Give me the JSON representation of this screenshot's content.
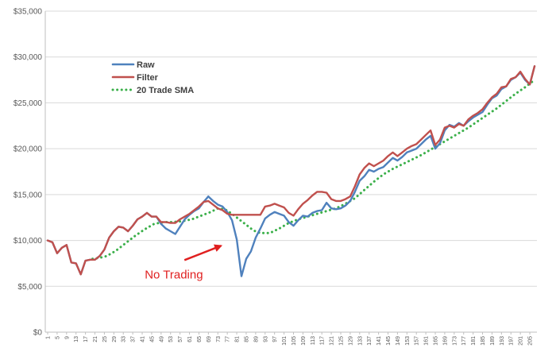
{
  "chart_data": {
    "type": "line",
    "title": "",
    "xlabel": "",
    "ylabel": "",
    "ylim": [
      0,
      35000
    ],
    "y_ticks": [
      0,
      5000,
      10000,
      15000,
      20000,
      25000,
      30000,
      35000
    ],
    "y_tick_labels": [
      "$0",
      "$5,000",
      "$10,000",
      "$15,000",
      "$20,000",
      "$25,000",
      "$30,000",
      "$35,000"
    ],
    "x_range": [
      1,
      207
    ],
    "x_tick_values": [
      1,
      5,
      9,
      13,
      17,
      21,
      25,
      29,
      33,
      37,
      41,
      45,
      49,
      53,
      57,
      61,
      65,
      69,
      73,
      77,
      81,
      85,
      89,
      93,
      97,
      101,
      105,
      109,
      113,
      117,
      121,
      125,
      129,
      133,
      137,
      141,
      145,
      149,
      153,
      157,
      161,
      165,
      169,
      173,
      177,
      181,
      185,
      189,
      193,
      197,
      201,
      205
    ],
    "x_tick_labels": [
      "1",
      "5",
      "9",
      "13",
      "17",
      "21",
      "25",
      "29",
      "33",
      "37",
      "41",
      "45",
      "49",
      "53",
      "57",
      "61",
      "65",
      "69",
      "73",
      "77",
      "81",
      "85",
      "89",
      "93",
      "97",
      "101",
      "105",
      "109",
      "113",
      "117",
      "121",
      "125",
      "129",
      "133",
      "137",
      "141",
      "145",
      "149",
      "153",
      "157",
      "161",
      "165",
      "169",
      "173",
      "177",
      "181",
      "185",
      "189",
      "193",
      "197",
      "201",
      "205"
    ],
    "grid": "horizontal",
    "legend_position": "top-left",
    "series": [
      {
        "name": "Raw",
        "color": "#4f81bd",
        "style": "solid",
        "points": [
          [
            1,
            10000
          ],
          [
            3,
            9800
          ],
          [
            5,
            8600
          ],
          [
            7,
            9200
          ],
          [
            9,
            9500
          ],
          [
            11,
            7600
          ],
          [
            13,
            7500
          ],
          [
            15,
            6300
          ],
          [
            17,
            7800
          ],
          [
            19,
            7900
          ],
          [
            21,
            7900
          ],
          [
            23,
            8300
          ],
          [
            25,
            9000
          ],
          [
            27,
            10300
          ],
          [
            29,
            11000
          ],
          [
            31,
            11500
          ],
          [
            33,
            11400
          ],
          [
            35,
            11000
          ],
          [
            37,
            11600
          ],
          [
            39,
            12300
          ],
          [
            41,
            12600
          ],
          [
            43,
            13000
          ],
          [
            45,
            12600
          ],
          [
            47,
            12600
          ],
          [
            49,
            11800
          ],
          [
            51,
            11300
          ],
          [
            53,
            11000
          ],
          [
            55,
            10700
          ],
          [
            57,
            11500
          ],
          [
            59,
            12300
          ],
          [
            61,
            12800
          ],
          [
            63,
            13200
          ],
          [
            65,
            13500
          ],
          [
            67,
            14200
          ],
          [
            69,
            14800
          ],
          [
            71,
            14300
          ],
          [
            73,
            13900
          ],
          [
            75,
            13700
          ],
          [
            77,
            13100
          ],
          [
            79,
            12200
          ],
          [
            81,
            10100
          ],
          [
            83,
            6100
          ],
          [
            85,
            8000
          ],
          [
            87,
            8800
          ],
          [
            89,
            10300
          ],
          [
            91,
            11300
          ],
          [
            93,
            12400
          ],
          [
            95,
            12800
          ],
          [
            97,
            13100
          ],
          [
            99,
            12900
          ],
          [
            101,
            12700
          ],
          [
            103,
            12000
          ],
          [
            105,
            11600
          ],
          [
            107,
            12200
          ],
          [
            109,
            12700
          ],
          [
            111,
            12600
          ],
          [
            113,
            13000
          ],
          [
            115,
            13200
          ],
          [
            117,
            13300
          ],
          [
            119,
            14100
          ],
          [
            121,
            13500
          ],
          [
            123,
            13400
          ],
          [
            125,
            13500
          ],
          [
            127,
            13800
          ],
          [
            129,
            14300
          ],
          [
            131,
            15300
          ],
          [
            133,
            16500
          ],
          [
            135,
            17000
          ],
          [
            137,
            17700
          ],
          [
            139,
            17500
          ],
          [
            141,
            17800
          ],
          [
            143,
            18000
          ],
          [
            145,
            18500
          ],
          [
            147,
            19000
          ],
          [
            149,
            18700
          ],
          [
            151,
            19100
          ],
          [
            153,
            19600
          ],
          [
            155,
            19800
          ],
          [
            157,
            20000
          ],
          [
            159,
            20500
          ],
          [
            161,
            21000
          ],
          [
            163,
            21400
          ],
          [
            165,
            20000
          ],
          [
            167,
            20600
          ],
          [
            169,
            22000
          ],
          [
            171,
            22600
          ],
          [
            173,
            22400
          ],
          [
            175,
            22800
          ],
          [
            177,
            22500
          ],
          [
            179,
            23000
          ],
          [
            181,
            23400
          ],
          [
            183,
            23700
          ],
          [
            185,
            24000
          ],
          [
            187,
            24800
          ],
          [
            189,
            25500
          ],
          [
            191,
            25800
          ],
          [
            193,
            26500
          ],
          [
            195,
            26800
          ],
          [
            197,
            27500
          ],
          [
            199,
            27800
          ],
          [
            201,
            28300
          ],
          [
            203,
            27500
          ],
          [
            205,
            27000
          ],
          [
            207,
            29000
          ]
        ]
      },
      {
        "name": "Filter",
        "color": "#c0504d",
        "style": "solid",
        "points": [
          [
            1,
            10000
          ],
          [
            3,
            9800
          ],
          [
            5,
            8600
          ],
          [
            7,
            9200
          ],
          [
            9,
            9500
          ],
          [
            11,
            7600
          ],
          [
            13,
            7500
          ],
          [
            15,
            6300
          ],
          [
            17,
            7800
          ],
          [
            19,
            7900
          ],
          [
            21,
            7900
          ],
          [
            23,
            8300
          ],
          [
            25,
            9000
          ],
          [
            27,
            10300
          ],
          [
            29,
            11000
          ],
          [
            31,
            11500
          ],
          [
            33,
            11400
          ],
          [
            35,
            11000
          ],
          [
            37,
            11600
          ],
          [
            39,
            12300
          ],
          [
            41,
            12600
          ],
          [
            43,
            13000
          ],
          [
            45,
            12600
          ],
          [
            47,
            12600
          ],
          [
            49,
            12000
          ],
          [
            51,
            12000
          ],
          [
            53,
            11900
          ],
          [
            55,
            11900
          ],
          [
            57,
            12300
          ],
          [
            59,
            12600
          ],
          [
            61,
            12900
          ],
          [
            63,
            13300
          ],
          [
            65,
            13700
          ],
          [
            67,
            14200
          ],
          [
            69,
            14300
          ],
          [
            71,
            13900
          ],
          [
            73,
            13500
          ],
          [
            75,
            13300
          ],
          [
            77,
            12900
          ],
          [
            79,
            12800
          ],
          [
            81,
            12800
          ],
          [
            83,
            12800
          ],
          [
            85,
            12800
          ],
          [
            87,
            12800
          ],
          [
            89,
            12800
          ],
          [
            91,
            12800
          ],
          [
            93,
            13700
          ],
          [
            95,
            13800
          ],
          [
            97,
            14000
          ],
          [
            99,
            13800
          ],
          [
            101,
            13600
          ],
          [
            103,
            13000
          ],
          [
            105,
            12700
          ],
          [
            107,
            13400
          ],
          [
            109,
            14000
          ],
          [
            111,
            14400
          ],
          [
            113,
            14900
          ],
          [
            115,
            15300
          ],
          [
            117,
            15300
          ],
          [
            119,
            15200
          ],
          [
            121,
            14500
          ],
          [
            123,
            14300
          ],
          [
            125,
            14300
          ],
          [
            127,
            14500
          ],
          [
            129,
            14800
          ],
          [
            131,
            15900
          ],
          [
            133,
            17200
          ],
          [
            135,
            17900
          ],
          [
            137,
            18400
          ],
          [
            139,
            18100
          ],
          [
            141,
            18400
          ],
          [
            143,
            18700
          ],
          [
            145,
            19200
          ],
          [
            147,
            19600
          ],
          [
            149,
            19200
          ],
          [
            151,
            19600
          ],
          [
            153,
            20000
          ],
          [
            155,
            20300
          ],
          [
            157,
            20500
          ],
          [
            159,
            21000
          ],
          [
            161,
            21500
          ],
          [
            163,
            22000
          ],
          [
            165,
            20400
          ],
          [
            167,
            21000
          ],
          [
            169,
            22300
          ],
          [
            171,
            22500
          ],
          [
            173,
            22300
          ],
          [
            175,
            22700
          ],
          [
            177,
            22500
          ],
          [
            179,
            23200
          ],
          [
            181,
            23600
          ],
          [
            183,
            23900
          ],
          [
            185,
            24300
          ],
          [
            187,
            25000
          ],
          [
            189,
            25600
          ],
          [
            191,
            26000
          ],
          [
            193,
            26700
          ],
          [
            195,
            26800
          ],
          [
            197,
            27600
          ],
          [
            199,
            27800
          ],
          [
            201,
            28400
          ],
          [
            203,
            27600
          ],
          [
            205,
            27000
          ],
          [
            207,
            29000
          ]
        ]
      },
      {
        "name": "20 Trade SMA",
        "color": "#3bb04a",
        "style": "dotted",
        "points": [
          [
            20,
            8000
          ],
          [
            23,
            8100
          ],
          [
            26,
            8300
          ],
          [
            30,
            8900
          ],
          [
            34,
            9700
          ],
          [
            38,
            10500
          ],
          [
            42,
            11200
          ],
          [
            46,
            11800
          ],
          [
            50,
            12000
          ],
          [
            54,
            12000
          ],
          [
            58,
            12100
          ],
          [
            62,
            12300
          ],
          [
            66,
            12700
          ],
          [
            70,
            13100
          ],
          [
            73,
            13500
          ],
          [
            76,
            13400
          ],
          [
            79,
            12900
          ],
          [
            82,
            12300
          ],
          [
            85,
            11700
          ],
          [
            88,
            11100
          ],
          [
            91,
            10800
          ],
          [
            95,
            10800
          ],
          [
            99,
            11300
          ],
          [
            103,
            11900
          ],
          [
            107,
            12300
          ],
          [
            111,
            12600
          ],
          [
            115,
            12900
          ],
          [
            119,
            13200
          ],
          [
            123,
            13500
          ],
          [
            127,
            14000
          ],
          [
            131,
            14600
          ],
          [
            135,
            15500
          ],
          [
            139,
            16400
          ],
          [
            143,
            17200
          ],
          [
            147,
            17800
          ],
          [
            151,
            18300
          ],
          [
            155,
            18800
          ],
          [
            159,
            19300
          ],
          [
            163,
            19900
          ],
          [
            167,
            20500
          ],
          [
            171,
            21100
          ],
          [
            175,
            21700
          ],
          [
            179,
            22300
          ],
          [
            183,
            23000
          ],
          [
            187,
            23700
          ],
          [
            191,
            24400
          ],
          [
            195,
            25200
          ],
          [
            199,
            26000
          ],
          [
            203,
            26700
          ],
          [
            207,
            27500
          ]
        ]
      }
    ],
    "annotation": {
      "text": "No Trading",
      "arrow_to": [
        75,
        9500
      ]
    }
  }
}
